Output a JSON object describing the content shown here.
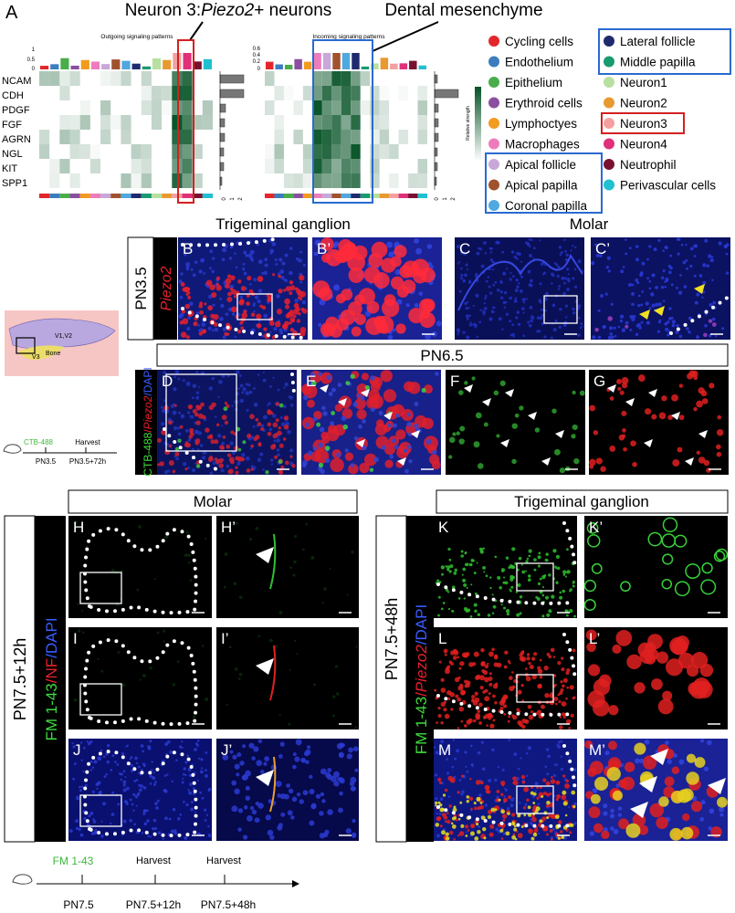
{
  "panel_a": {
    "label": "A",
    "title_parts": [
      "Neuron 3:",
      "Piezo2",
      "+ neurons"
    ],
    "callout": "Dental mesenchyme",
    "outgoing_title": "Outgoing signaling patterns",
    "incoming_title": "Incoming signaling patterns",
    "pathways": [
      "NCAM",
      "CDH",
      "PDGF",
      "FGF",
      "AGRN",
      "NGL",
      "KIT",
      "SPP1"
    ],
    "outgoing_axis_ticks": [
      "1",
      "0.5",
      "0"
    ],
    "incoming_axis_ticks": [
      "0.6",
      "0.4",
      "0.2",
      "0"
    ],
    "bar_axis_ticks": [
      "0",
      "1",
      "2"
    ],
    "colorbar_label": "Relative strength",
    "legend": [
      {
        "name": "Cycling cells",
        "color": "#e3262b"
      },
      {
        "name": "Endothelium",
        "color": "#3b7dbf"
      },
      {
        "name": "Epithelium",
        "color": "#4aad4a"
      },
      {
        "name": "Erythroid cells",
        "color": "#8a4f9f"
      },
      {
        "name": "Lymphoctyes",
        "color": "#f29b1f"
      },
      {
        "name": "Macrophages",
        "color": "#ee7cbd"
      },
      {
        "name": "Apical follicle",
        "color": "#c8a8d8"
      },
      {
        "name": "Apical papilla",
        "color": "#a0522d"
      },
      {
        "name": "Coronal papilla",
        "color": "#4fa8df"
      },
      {
        "name": "Lateral follicle",
        "color": "#1f2a6e"
      },
      {
        "name": "Middle papilla",
        "color": "#1a9a70"
      },
      {
        "name": "Neuron1",
        "color": "#b8e0a0"
      },
      {
        "name": "Neuron2",
        "color": "#e89a30"
      },
      {
        "name": "Neuron3",
        "color": "#f4a0a0"
      },
      {
        "name": "Neuron4",
        "color": "#e0307a"
      },
      {
        "name": "Neutrophil",
        "color": "#7a1030"
      },
      {
        "name": "Perivascular cells",
        "color": "#20c0d0"
      }
    ]
  },
  "row1": {
    "headers": [
      "Trigeminal ganglion",
      "Molar"
    ],
    "stage": "PN3.5",
    "stain": "Piezo2",
    "panels": [
      "B",
      "B’",
      "C",
      "C’"
    ]
  },
  "row2": {
    "stage": "PN6.5",
    "stain_parts": [
      "CTB-488",
      "/",
      "Piezo2",
      "/DAPI"
    ],
    "panels": [
      "D",
      "E",
      "F",
      "G"
    ],
    "schematic": [
      "V1,V2",
      "V3",
      "Bone"
    ],
    "timeline": [
      "CTB-488",
      "Harvest",
      "PN3.5",
      "PN3.5+72h"
    ]
  },
  "row3": {
    "headers": [
      "Molar",
      "Trigeminal ganglion"
    ],
    "left_stage": "PN7.5+12h",
    "left_stain_parts": [
      "FM 1-43",
      "/NF",
      "/DAPI"
    ],
    "right_stage": "PN7.5+48h",
    "right_stain_parts": [
      "FM 1-43",
      "/",
      "Piezo2",
      "/DAPI"
    ],
    "panels_left": [
      "H",
      "H’",
      "I",
      "I’",
      "J",
      "J’"
    ],
    "panels_right": [
      "K",
      "K’",
      "L",
      "L’",
      "M",
      "M’"
    ],
    "timeline": {
      "agent": "FM 1-43",
      "harvest_labels": [
        "Harvest",
        "Harvest"
      ],
      "times": [
        "PN7.5",
        "PN7.5+12h",
        "PN7.5+48h"
      ]
    }
  }
}
